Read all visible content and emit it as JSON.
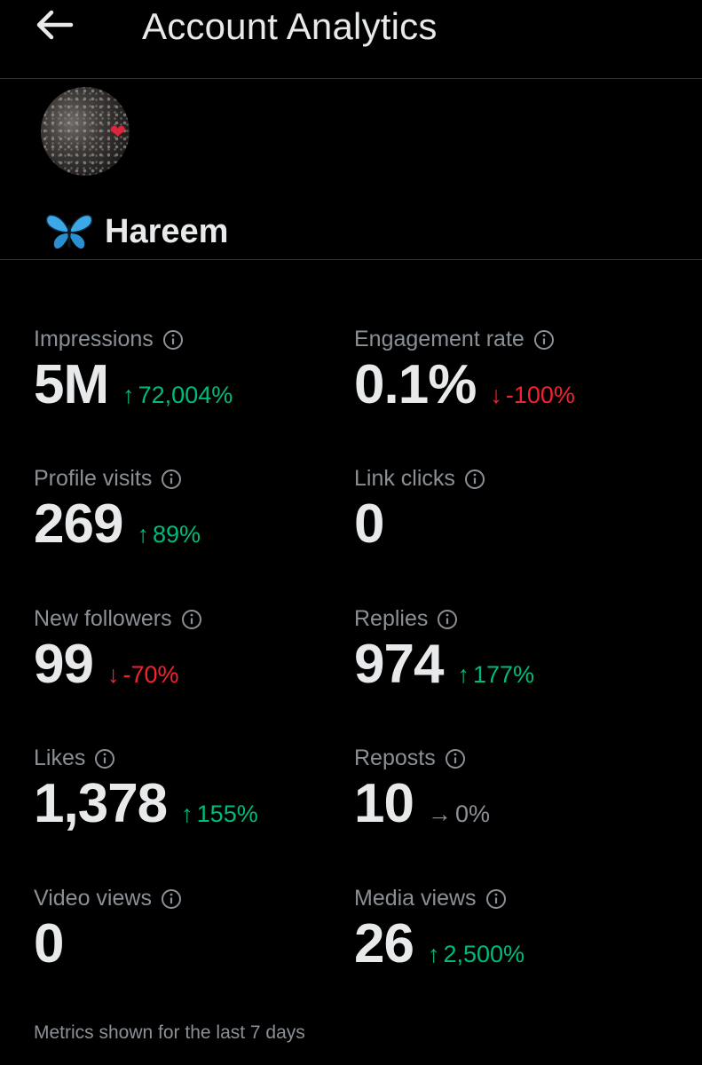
{
  "header": {
    "title": "Account Analytics",
    "back_icon": "arrow-left-icon"
  },
  "profile": {
    "display_name": "Hareem",
    "name_emoji": "butterfly-icon",
    "avatar_badge": "red-heart"
  },
  "metrics": [
    {
      "label": "Impressions",
      "value": "5M",
      "arrow": "↑",
      "change": "72,004%",
      "trend": "up"
    },
    {
      "label": "Engagement rate",
      "value": "0.1%",
      "arrow": "↓",
      "change": "-100%",
      "trend": "down"
    },
    {
      "label": "Profile visits",
      "value": "269",
      "arrow": "↑",
      "change": "89%",
      "trend": "up"
    },
    {
      "label": "Link clicks",
      "value": "0",
      "arrow": "",
      "change": "",
      "trend": "none"
    },
    {
      "label": "New followers",
      "value": "99",
      "arrow": "↓",
      "change": "-70%",
      "trend": "down"
    },
    {
      "label": "Replies",
      "value": "974",
      "arrow": "↑",
      "change": "177%",
      "trend": "up"
    },
    {
      "label": "Likes",
      "value": "1,378",
      "arrow": "↑",
      "change": "155%",
      "trend": "up"
    },
    {
      "label": "Reposts",
      "value": "10",
      "arrow": "→",
      "change": "0%",
      "trend": "flat"
    },
    {
      "label": "Video views",
      "value": "0",
      "arrow": "",
      "change": "",
      "trend": "none"
    },
    {
      "label": "Media views",
      "value": "26",
      "arrow": "↑",
      "change": "2,500%",
      "trend": "up"
    }
  ],
  "footnote": "Metrics shown for the last 7 days",
  "colors": {
    "background": "#000000",
    "text_primary": "#e7e9ea",
    "text_secondary": "#8b9096",
    "up": "#00ba7c",
    "down": "#f4212e",
    "divider": "#2f3336"
  }
}
